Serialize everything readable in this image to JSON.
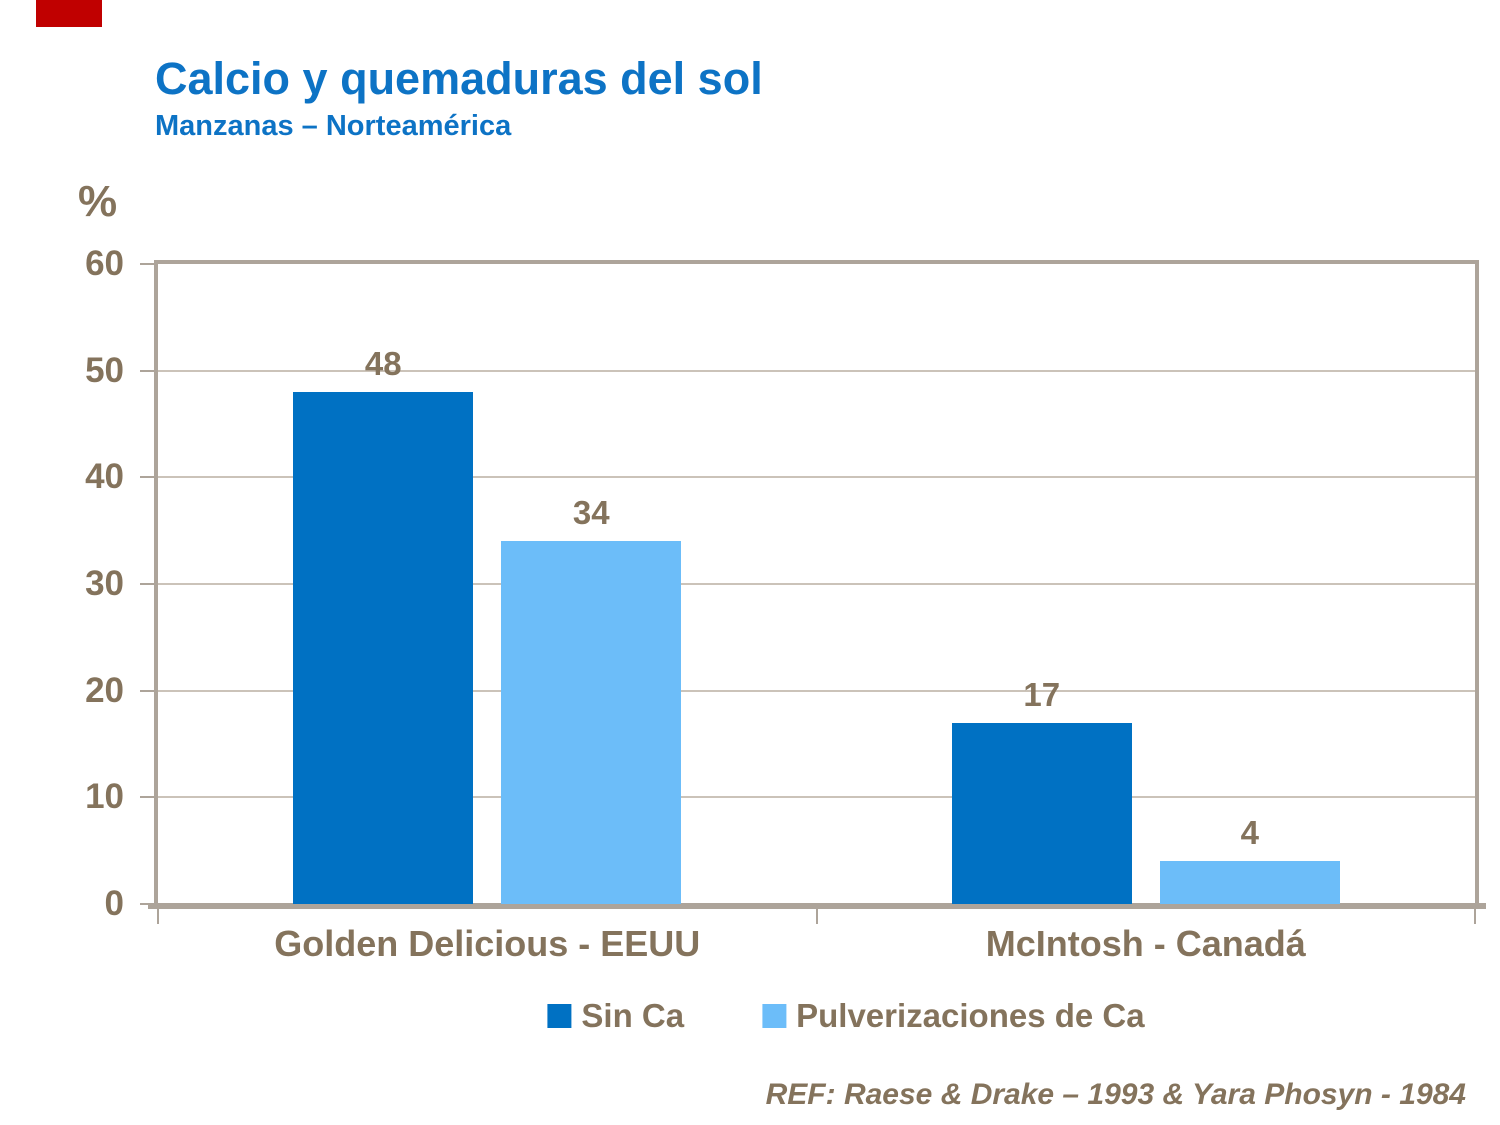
{
  "slide": {
    "title": "Calcio y quemaduras del sol",
    "subtitle": "Manzanas – Norteamérica",
    "reference": "REF: Raese & Drake – 1993 & Yara Phosyn - 1984"
  },
  "colors": {
    "accent_red": "#C00000",
    "title_blue": "#0D73C5",
    "axis_text_brown": "#84735C",
    "frame_tan": "#ADA49A",
    "gridline_tan": "#CBC3B9",
    "series_dark_blue": "#0071C3",
    "series_light_blue": "#6CBDF9"
  },
  "chart_data": {
    "type": "bar",
    "title": "Calcio y quemaduras del sol",
    "subtitle": "Manzanas – Norteamérica",
    "xlabel": "",
    "ylabel": "%",
    "ylim": [
      0,
      60
    ],
    "yticks": [
      0,
      10,
      20,
      30,
      40,
      50,
      60
    ],
    "grid": true,
    "legend_position": "bottom",
    "categories": [
      "Golden Delicious - EEUU",
      "McIntosh - Canadá"
    ],
    "series": [
      {
        "name": "Sin Ca",
        "values": [
          48,
          17
        ],
        "color": "#0071C3"
      },
      {
        "name": "Pulverizaciones de Ca",
        "values": [
          34,
          4
        ],
        "color": "#6CBDF9"
      }
    ],
    "value_labels": true,
    "reference": "REF: Raese & Drake – 1993 & Yara Phosyn - 1984"
  }
}
